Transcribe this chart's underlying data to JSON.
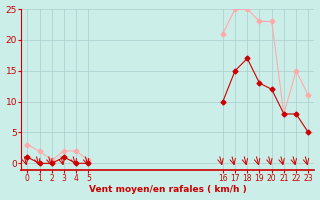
{
  "hours": [
    0,
    1,
    2,
    3,
    4,
    5,
    16,
    17,
    18,
    19,
    20,
    21,
    22,
    23
  ],
  "wind_avg": [
    1,
    0,
    0,
    1,
    0,
    0,
    10,
    15,
    17,
    13,
    12,
    8,
    8,
    5
  ],
  "wind_gust": [
    3,
    2,
    0.5,
    2,
    2,
    0.5,
    21,
    25,
    25,
    23,
    23,
    8,
    15,
    11
  ],
  "line_color_avg": "#cc0000",
  "line_color_gust": "#ffaaaa",
  "bg_color": "#cceee8",
  "grid_color": "#aacccc",
  "axis_color": "#cc0000",
  "xlabel": "Vent moyen/en rafales ( km/h )",
  "xlabel_color": "#cc0000",
  "ylim": [
    -1,
    25
  ],
  "yticks": [
    0,
    5,
    10,
    15,
    20,
    25
  ],
  "xticks_left": [
    0,
    1,
    2,
    3,
    4,
    5
  ],
  "xticks_right": [
    16,
    17,
    18,
    19,
    20,
    21,
    22,
    23
  ],
  "xlim": [
    -0.5,
    23.5
  ],
  "marker_size": 2.5,
  "linewidth": 0.8
}
